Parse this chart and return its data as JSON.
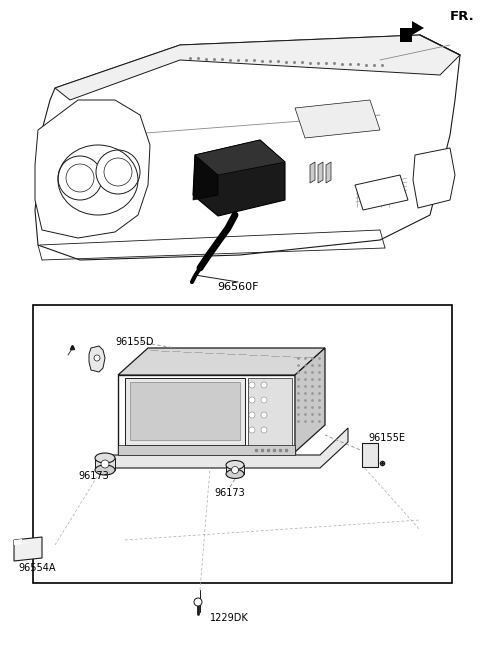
{
  "bg_color": "#ffffff",
  "line_color": "#1a1a1a",
  "fig_width": 4.8,
  "fig_height": 6.71,
  "dpi": 100,
  "labels": {
    "FR": "FR.",
    "part1": "96560F",
    "part2": "96155D",
    "part3": "96155E",
    "part4_1": "96173",
    "part4_2": "96173",
    "part5": "96554A",
    "part6": "1229DK"
  },
  "font_size_labels": 7.0,
  "font_size_fr": 9.5,
  "font_size_part": 8.0
}
